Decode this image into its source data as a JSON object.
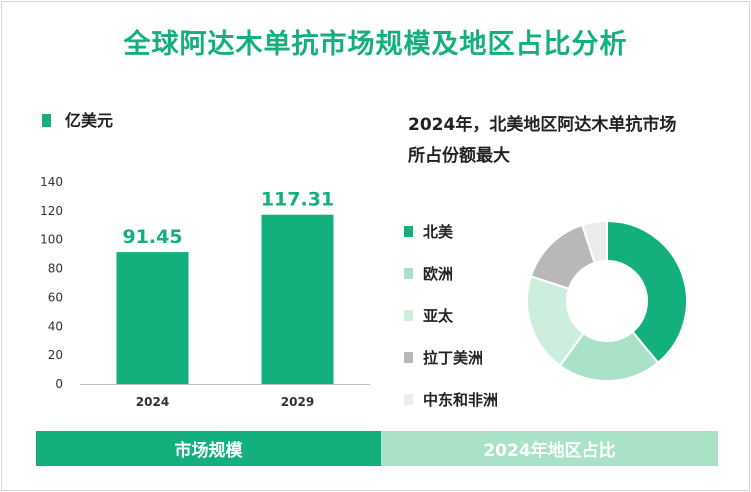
{
  "title": "全球阿达木单抗市场规模及地区占比分析",
  "unit_label": "亿美元",
  "bottom_left_label": "市场规模",
  "bottom_right_label": "2024年地区占比",
  "pie_subtitle_line1": "2024年，北美地区阿达木单抗市场",
  "pie_subtitle_line2": "所占份额最大",
  "colors": {
    "accent": "#13b07e",
    "light_accent": "#a9e2c6",
    "title": "#13b07e"
  },
  "chart_data": [
    {
      "type": "bar",
      "categories": [
        "2024",
        "2029"
      ],
      "values": [
        91.45,
        117.31
      ],
      "value_labels": [
        "91.45",
        "117.31"
      ],
      "ylim": [
        0,
        140
      ],
      "yticks": [
        "0",
        "20",
        "40",
        "60",
        "80",
        "100",
        "120",
        "140"
      ],
      "grid": false,
      "color": "#13b07e"
    },
    {
      "type": "pie",
      "style": "donut",
      "legend_position": "left",
      "labels": [
        "北美",
        "欧洲",
        "亚太",
        "拉丁美洲",
        "中东和非洲"
      ],
      "values": [
        39,
        21,
        20,
        15,
        5
      ],
      "colors": [
        "#13b07e",
        "#a9e2c6",
        "#cdeedd",
        "#b8b8b8",
        "#ececec"
      ]
    }
  ]
}
